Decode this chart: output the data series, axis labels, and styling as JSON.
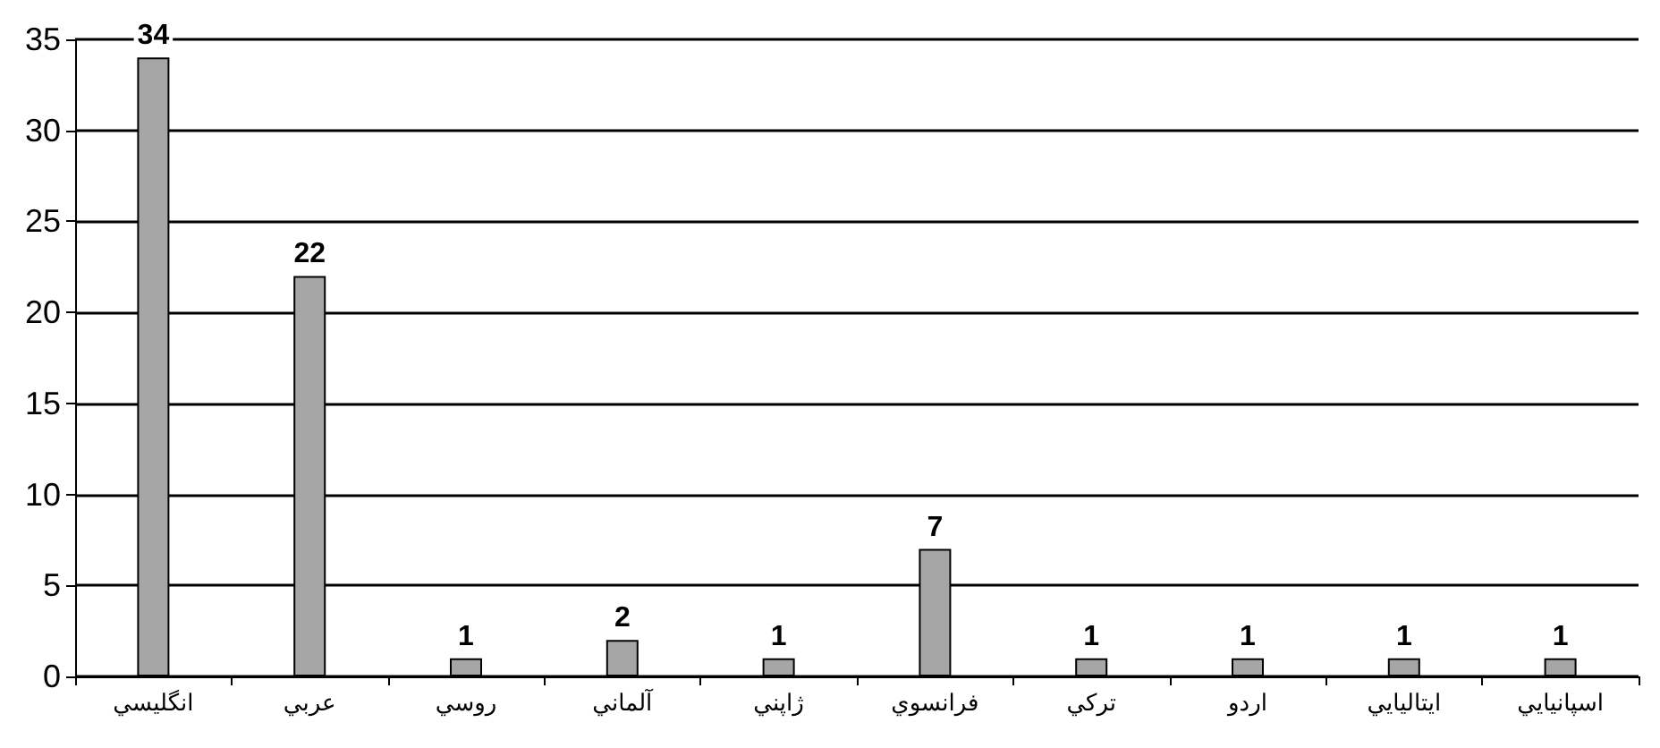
{
  "chart_data": {
    "type": "bar",
    "categories": [
      "انگليسي",
      "عربي",
      "روسي",
      "آلماني",
      "ژاپني",
      "فرانسوي",
      "تركي",
      "اردو",
      "ايتاليايي",
      "اسپانيايي"
    ],
    "values": [
      34,
      22,
      1,
      2,
      1,
      7,
      1,
      1,
      1,
      1
    ],
    "color": "#a6a6a6",
    "ylim": [
      0,
      35
    ],
    "yticks": [
      0,
      5,
      10,
      15,
      20,
      25,
      30,
      35
    ],
    "grid": "y",
    "data_labels": true
  }
}
